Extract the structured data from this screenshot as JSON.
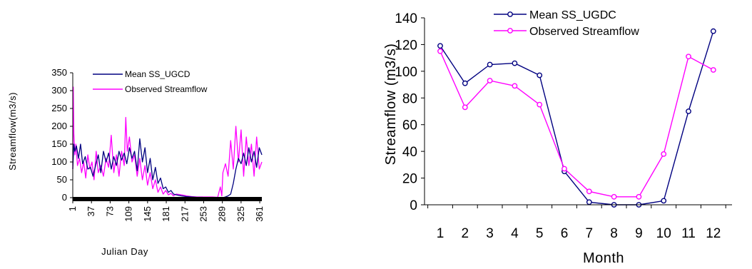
{
  "chart_data": [
    {
      "type": "line",
      "title": "",
      "xlabel": "Julian Day",
      "ylabel": "Streamflow(m3/s)",
      "xlim": [
        1,
        365
      ],
      "ylim": [
        0,
        350
      ],
      "xticks": [
        "1",
        "37",
        "73",
        "109",
        "145",
        "181",
        "217",
        "253",
        "289",
        "325",
        "361"
      ],
      "yticks": [
        "0",
        "50",
        "100",
        "150",
        "200",
        "250",
        "300",
        "350"
      ],
      "legend_position": "top-right",
      "series": [
        {
          "name": "Mean SS_UGCD",
          "color": "#000080",
          "x": [
            1,
            3,
            5,
            8,
            12,
            16,
            20,
            25,
            30,
            35,
            40,
            45,
            50,
            55,
            60,
            65,
            70,
            75,
            80,
            85,
            90,
            95,
            100,
            105,
            110,
            115,
            120,
            125,
            130,
            135,
            140,
            145,
            150,
            155,
            160,
            165,
            170,
            175,
            180,
            185,
            190,
            195,
            200,
            210,
            220,
            230,
            240,
            250,
            260,
            270,
            280,
            290,
            295,
            300,
            305,
            310,
            315,
            320,
            325,
            330,
            335,
            340,
            345,
            350,
            355,
            360,
            365
          ],
          "values": [
            80,
            150,
            130,
            145,
            110,
            150,
            95,
            115,
            80,
            85,
            60,
            90,
            120,
            70,
            130,
            100,
            125,
            80,
            115,
            90,
            130,
            105,
            125,
            95,
            140,
            110,
            130,
            75,
            165,
            100,
            140,
            70,
            110,
            50,
            85,
            40,
            55,
            25,
            30,
            15,
            20,
            10,
            8,
            5,
            3,
            2,
            1,
            1,
            0,
            0,
            0,
            0,
            2,
            5,
            10,
            40,
            80,
            110,
            95,
            125,
            90,
            140,
            100,
            130,
            85,
            140,
            120
          ]
        },
        {
          "name": "Observed Streamflow",
          "color": "#ff00ff",
          "x": [
            1,
            2,
            3,
            5,
            7,
            10,
            14,
            18,
            22,
            26,
            30,
            34,
            38,
            42,
            46,
            50,
            55,
            60,
            65,
            70,
            75,
            80,
            85,
            90,
            95,
            100,
            103,
            106,
            110,
            115,
            120,
            125,
            130,
            135,
            140,
            145,
            150,
            155,
            160,
            165,
            170,
            175,
            180,
            185,
            190,
            195,
            200,
            210,
            220,
            230,
            240,
            250,
            260,
            270,
            280,
            285,
            288,
            290,
            295,
            300,
            305,
            310,
            315,
            320,
            325,
            330,
            335,
            340,
            345,
            350,
            355,
            360,
            365
          ],
          "values": [
            80,
            310,
            180,
            120,
            150,
            90,
            110,
            70,
            100,
            55,
            120,
            80,
            100,
            50,
            130,
            70,
            90,
            60,
            110,
            85,
            175,
            70,
            120,
            60,
            130,
            90,
            225,
            130,
            170,
            100,
            120,
            60,
            110,
            50,
            90,
            35,
            70,
            25,
            50,
            15,
            30,
            10,
            20,
            8,
            12,
            5,
            10,
            8,
            5,
            3,
            2,
            2,
            2,
            2,
            1,
            30,
            5,
            70,
            95,
            60,
            160,
            80,
            200,
            100,
            190,
            60,
            170,
            90,
            150,
            60,
            170,
            80,
            100
          ]
        }
      ]
    },
    {
      "type": "line",
      "title": "",
      "xlabel": "Month",
      "ylabel": "Streamflow (m3/s)",
      "xlim": [
        1,
        12
      ],
      "ylim": [
        0,
        140
      ],
      "categories": [
        "1",
        "2",
        "3",
        "4",
        "5",
        "6",
        "7",
        "8",
        "9",
        "10",
        "11",
        "12"
      ],
      "yticks": [
        "0",
        "20",
        "40",
        "60",
        "80",
        "100",
        "120",
        "140"
      ],
      "legend_position": "top-left",
      "series": [
        {
          "name": "Mean SS_UGDC",
          "color": "#000080",
          "values": [
            119,
            91,
            105,
            106,
            97,
            25,
            2,
            0,
            0,
            3,
            70,
            130
          ]
        },
        {
          "name": "Observed Streamflow",
          "color": "#ff00ff",
          "values": [
            115,
            73,
            93,
            89,
            75,
            27,
            10,
            6,
            6,
            38,
            111,
            101
          ]
        }
      ]
    }
  ]
}
